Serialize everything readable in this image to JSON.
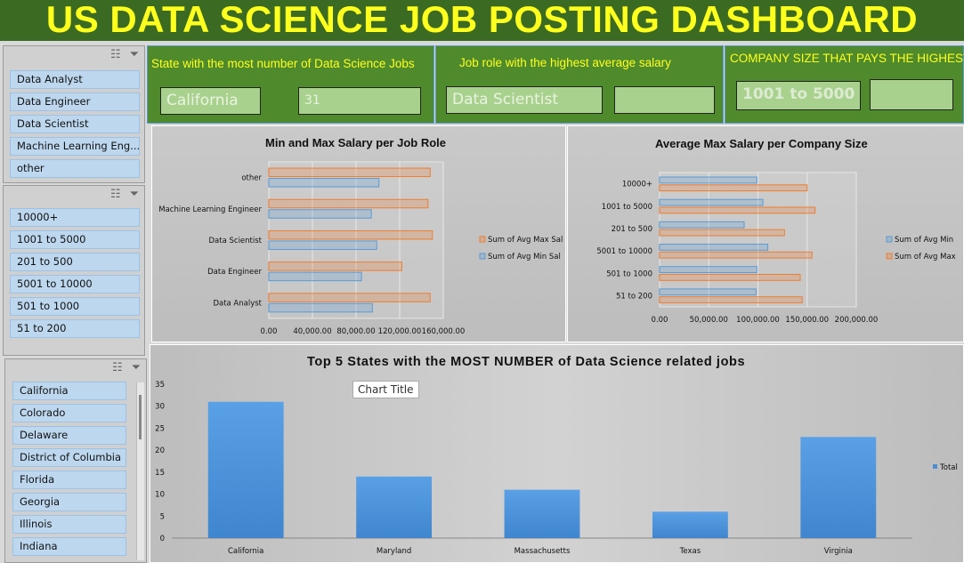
{
  "header": {
    "title": "US DATA SCIENCE JOB POSTING  DASHBOARD"
  },
  "slicers": {
    "job_roles": [
      "Data Analyst",
      "Data Engineer",
      "Data Scientist",
      "Machine Learning Eng...",
      "other"
    ],
    "company_sizes": [
      "10000+",
      "1001 to 5000",
      "201 to 500",
      "5001 to 10000",
      "501 to 1000",
      "51 to 200"
    ],
    "states": [
      "California",
      "Colorado",
      "Delaware",
      "District of Columbia",
      "Florida",
      "Georgia",
      "Illinois",
      "Indiana"
    ]
  },
  "kpis": {
    "state": {
      "title": "State with the most number of Data Science Jobs",
      "value": "California",
      "count": "31"
    },
    "role": {
      "title": "Job role with the highest average salary",
      "value": "Data Scientist",
      "extra": ""
    },
    "company": {
      "title": "COMPANY SIZE THAT PAYS THE HIGHEST",
      "value": "1001 to 5000",
      "extra": ""
    }
  },
  "colors": {
    "max_series": "#ed7d31",
    "min_series": "#5b9bd5",
    "bar_fill": "#4a8fd6",
    "header_bg": "#3b6a23",
    "title_yellow": "#ffff1e"
  },
  "chart_data": [
    {
      "type": "bar",
      "orientation": "horizontal",
      "title": "Min and Max Salary per Job Role",
      "categories": [
        "Data Analyst",
        "Data Engineer",
        "Data Scientist",
        "Machine Learning Engineer",
        "other"
      ],
      "series": [
        {
          "name": "Sum of Avg Max Sal",
          "values": [
            148000,
            122000,
            150000,
            146000,
            148000
          ]
        },
        {
          "name": "Sum of Avg Min Sal",
          "values": [
            95000,
            85000,
            99000,
            94000,
            101000
          ]
        }
      ],
      "xticks": [
        "0.00",
        "40,000.00",
        "80,000.00",
        "120,000.00",
        "160,000.00"
      ],
      "xlim": [
        0,
        160000
      ],
      "grid": true,
      "legend": "right"
    },
    {
      "type": "bar",
      "orientation": "horizontal",
      "title": "Average Max Salary per Company Size",
      "categories": [
        "51 to 200",
        "501 to 1000",
        "5001 to 10000",
        "201 to 500",
        "1001 to 5000",
        "10000+"
      ],
      "series": [
        {
          "name": "Sum of Avg Min",
          "values": [
            98000,
            99000,
            110000,
            86000,
            105000,
            99000
          ]
        },
        {
          "name": "Sum of Avg Max",
          "values": [
            145000,
            143000,
            155000,
            127000,
            158000,
            150000
          ]
        }
      ],
      "xticks": [
        "0.00",
        "50,000.00",
        "100,000.00",
        "150,000.00",
        "200,000.00"
      ],
      "xlim": [
        0,
        200000
      ],
      "grid": true,
      "legend": "right"
    },
    {
      "type": "bar",
      "title": "Top 5 States with the MOST NUMBER of Data Science related jobs",
      "categories": [
        "California",
        "Maryland",
        "Massachusetts",
        "Texas",
        "Virginia"
      ],
      "series": [
        {
          "name": "Total",
          "values": [
            31,
            14,
            11,
            6,
            23
          ]
        }
      ],
      "yticks": [
        "0",
        "5",
        "10",
        "15",
        "20",
        "25",
        "30",
        "35"
      ],
      "ylim": [
        0,
        35
      ],
      "legend": "right",
      "tooltip": "Chart Title"
    }
  ]
}
